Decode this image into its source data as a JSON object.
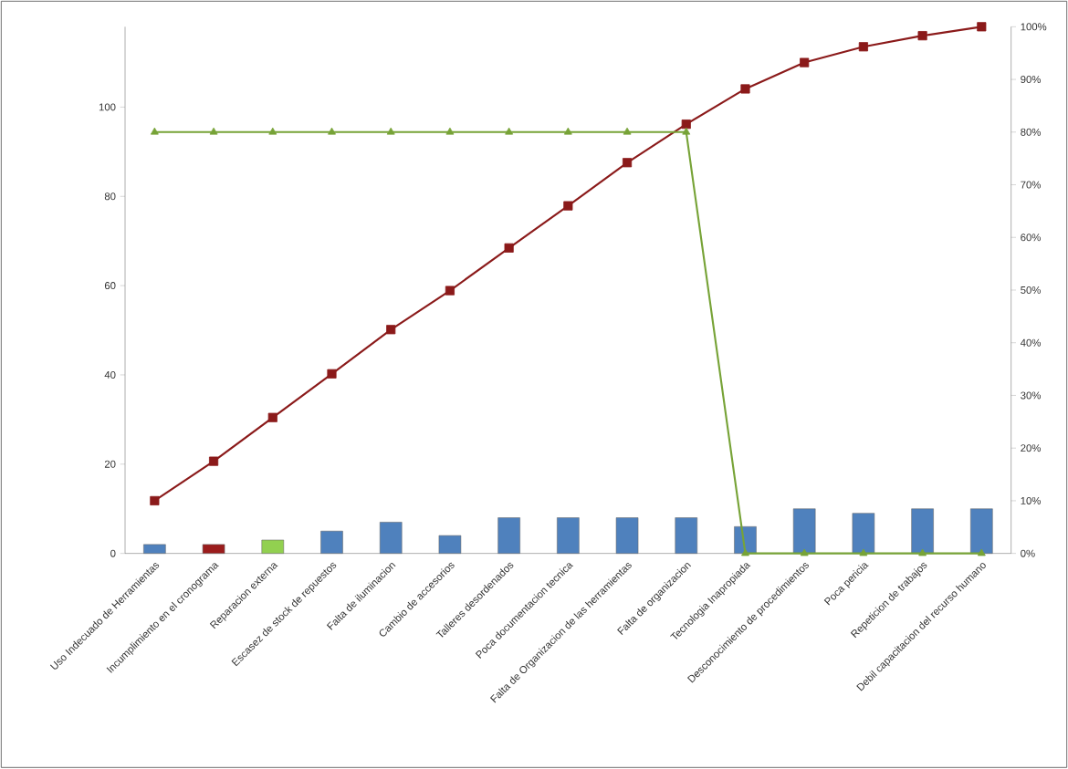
{
  "chart_data": {
    "type": "bar",
    "categories": [
      "Uso Indecuado de Herramientas",
      "Incumplimiento en el cronograma",
      "Reparacion externa",
      "Escasez de stock de repuestos",
      "Falta de iluminacion",
      "Cambio de accesorios",
      "Talleres desordenados",
      "Poca documentacion tecnica",
      "Falta de Organizacion de las herramientas",
      "Falta de organizacion",
      "Tecnologia Inapropiada",
      "Desconocimiento de procedimientos",
      "Poca pericia",
      "Repeticion de trabajos",
      "Debil capacitacion del recurso humano"
    ],
    "series": [
      {
        "colors": [
          "#4f81bd",
          "#9b1c1c",
          "#92d050",
          "#4f81bd",
          "#4f81bd",
          "#4f81bd",
          "#4f81bd",
          "#4f81bd",
          "#4f81bd",
          "#4f81bd",
          "#4f81bd",
          "#4f81bd",
          "#4f81bd",
          "#4f81bd",
          "#4f81bd"
        ],
        "values": [
          2,
          2,
          3,
          5,
          7,
          4,
          8,
          8,
          8,
          8,
          6,
          10,
          9,
          10,
          10
        ]
      },
      {
        "type": "line",
        "axis": "y2",
        "color": "#8b1a1a",
        "marker": "square",
        "values": [
          10,
          17.5,
          25.8,
          34.1,
          42.5,
          49.9,
          58,
          66,
          74.2,
          81.5,
          88.2,
          93.2,
          96.2,
          98.3,
          100
        ]
      },
      {
        "type": "line",
        "axis": "y2",
        "color": "#77a337",
        "marker": "triangle",
        "values": [
          80,
          80,
          80,
          80,
          80,
          80,
          80,
          80,
          80,
          80,
          0,
          0,
          0,
          0,
          0
        ]
      }
    ],
    "ylim": [
      0,
      118
    ],
    "yticks": [
      0,
      20,
      40,
      60,
      80,
      100
    ],
    "y2lim": [
      0,
      100
    ],
    "y2ticks": [
      {
        "value": 0,
        "label": "0%"
      },
      {
        "value": 10,
        "label": "10%"
      },
      {
        "value": 20,
        "label": "20%"
      },
      {
        "value": 30,
        "label": "30%"
      },
      {
        "value": 40,
        "label": "40%"
      },
      {
        "value": 50,
        "label": "50%"
      },
      {
        "value": 60,
        "label": "60%"
      },
      {
        "value": 70,
        "label": "70%"
      },
      {
        "value": 80,
        "label": "80%"
      },
      {
        "value": 90,
        "label": "90%"
      },
      {
        "value": 100,
        "label": "100%"
      }
    ]
  }
}
